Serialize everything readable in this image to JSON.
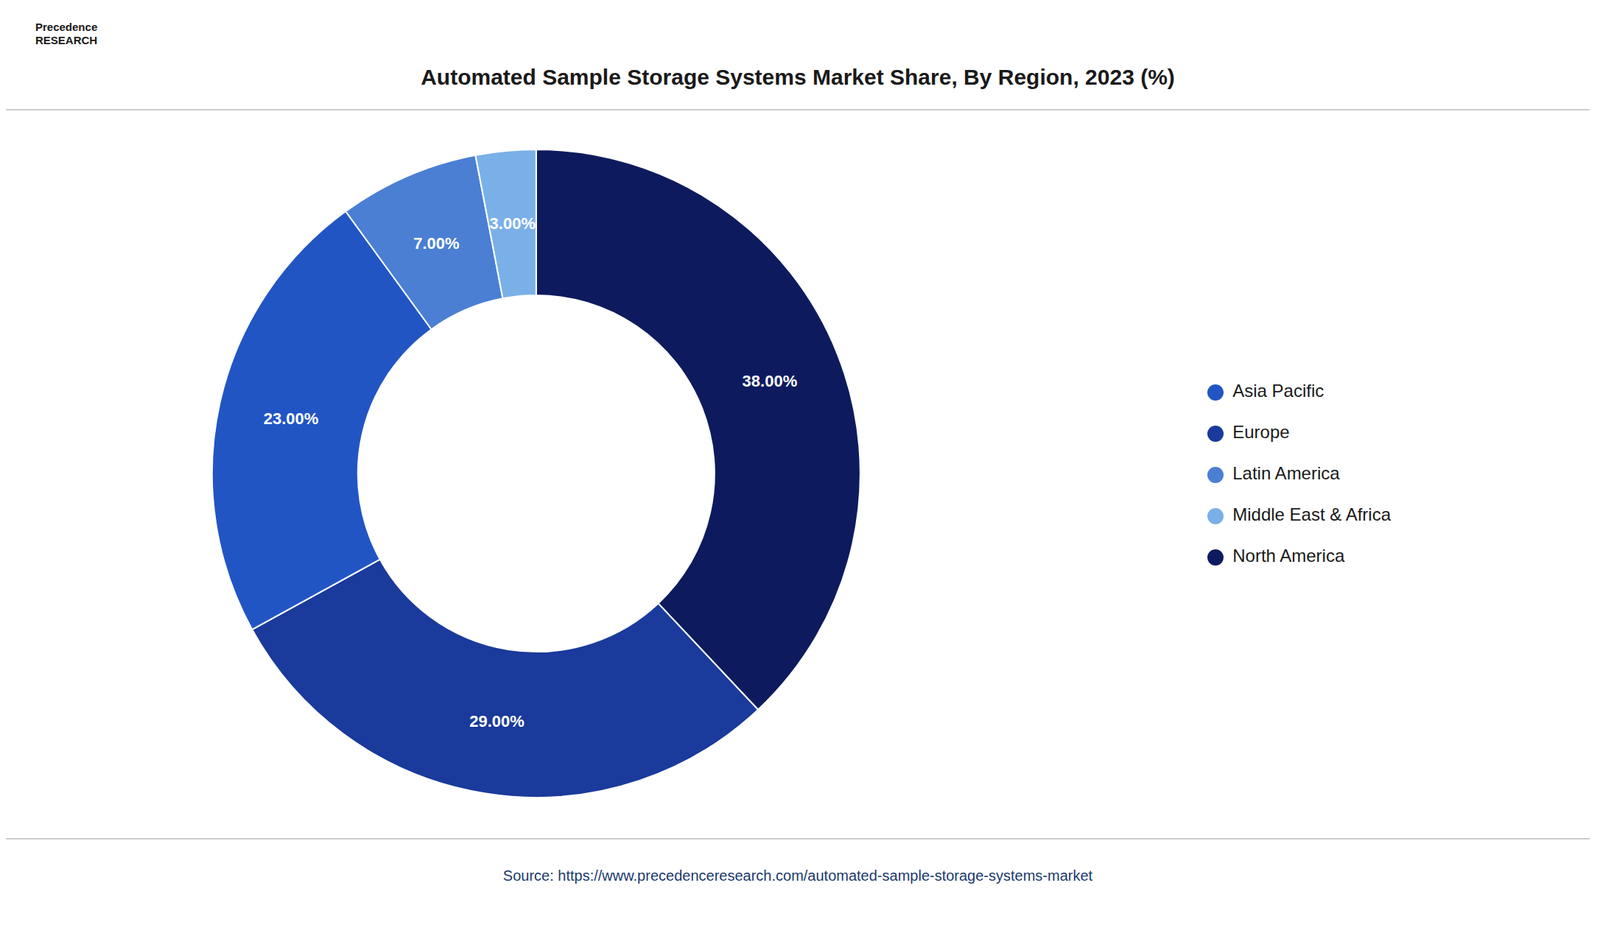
{
  "chart_data": {
    "type": "pie",
    "title": "Automated Sample Storage Systems Market Share, By Region, 2023 (%)",
    "categories": [
      "North America",
      "Europe",
      "Asia Pacific",
      "Latin America",
      "Middle East & Africa"
    ],
    "values": [
      38.0,
      29.0,
      23.0,
      7.0,
      3.0
    ],
    "value_labels": [
      "38.00%",
      "29.00%",
      "23.00%",
      "7.00%",
      "3.00%"
    ],
    "colors": [
      "#0d1b5e",
      "#1a3a9c",
      "#2255c4",
      "#4a7fd4",
      "#7ab0e8"
    ],
    "data_labels": true,
    "legend": "right",
    "annotations": [
      "Precedence\nRESEARCH",
      "Source: https://www.precedenceresearch.com/automated-sample-storage-systems-market"
    ]
  }
}
